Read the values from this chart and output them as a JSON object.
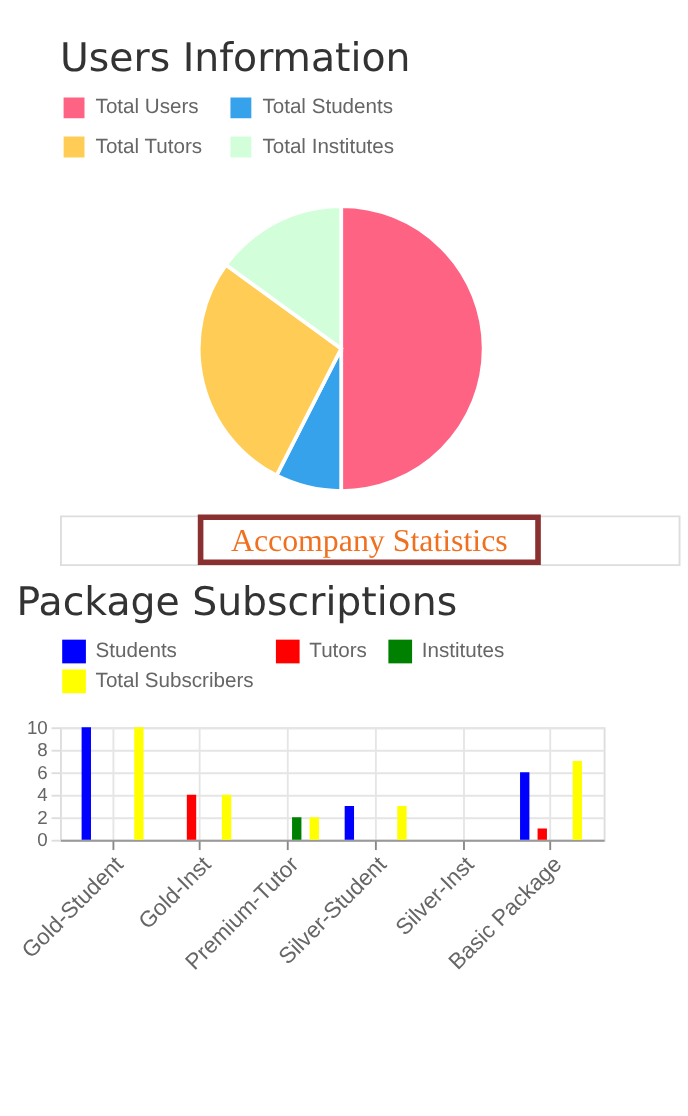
{
  "chart_data": [
    {
      "type": "pie",
      "title": "Users Information",
      "categories": [
        "Total Users",
        "Total Students",
        "Total Tutors",
        "Total Institutes"
      ],
      "values": [
        50,
        7.5,
        27.5,
        15
      ],
      "colors": [
        "#ff6384",
        "#36a2eb",
        "#ffcd56",
        "#d2ffda"
      ],
      "legend": "top",
      "annotations": [
        "Accompany Statistics"
      ]
    },
    {
      "type": "bar",
      "title": "Package Subscriptions",
      "categories": [
        "Gold-Student",
        "Gold-Inst",
        "Premium-Tutor",
        "Silver-Student",
        "Silver-Inst",
        "Basic Package"
      ],
      "series": [
        {
          "name": "Students",
          "color": "#0000ff",
          "values": [
            10,
            0,
            0,
            3,
            0,
            6
          ]
        },
        {
          "name": "Tutors",
          "color": "#ff0000",
          "values": [
            0,
            4,
            0,
            0,
            0,
            1
          ]
        },
        {
          "name": "Institutes",
          "color": "#008000",
          "values": [
            0,
            0,
            2,
            0,
            0,
            0
          ]
        },
        {
          "name": "Total Subscribers",
          "color": "#ffff00",
          "values": [
            10,
            4,
            2,
            3,
            0,
            7
          ]
        }
      ],
      "ylim": [
        0,
        10
      ],
      "yticks": [
        0,
        2,
        4,
        6,
        8,
        10
      ],
      "grid": true,
      "legend": "top"
    }
  ]
}
